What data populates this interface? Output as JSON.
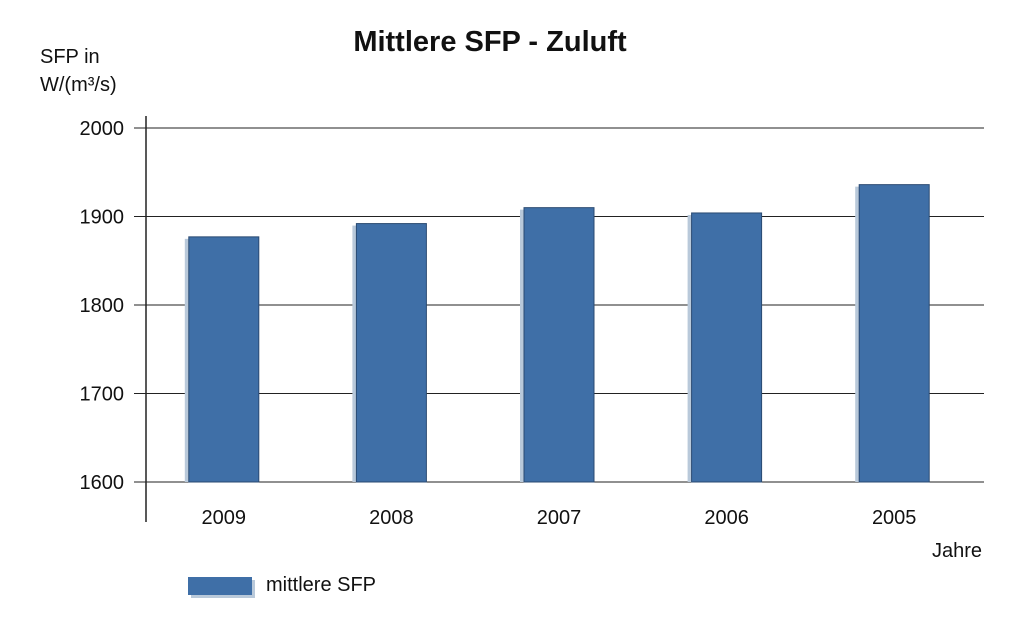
{
  "chart_data": {
    "type": "bar",
    "title": "Mittlere SFP - Zuluft",
    "ylabel_line1": "SFP in",
    "ylabel_line2": "W/(m³/s)",
    "xlabel": "Jahre",
    "categories": [
      "2009",
      "2008",
      "2007",
      "2006",
      "2005"
    ],
    "series": [
      {
        "name": "mittlere SFP",
        "values": [
          1877,
          1892,
          1910,
          1904,
          1936
        ]
      }
    ],
    "ylim": [
      1600,
      2000
    ],
    "yticks": [
      1600,
      1700,
      1800,
      1900,
      2000
    ],
    "grid": true,
    "legend_position": "bottom-left",
    "bar_color": "#3f6fa7"
  }
}
